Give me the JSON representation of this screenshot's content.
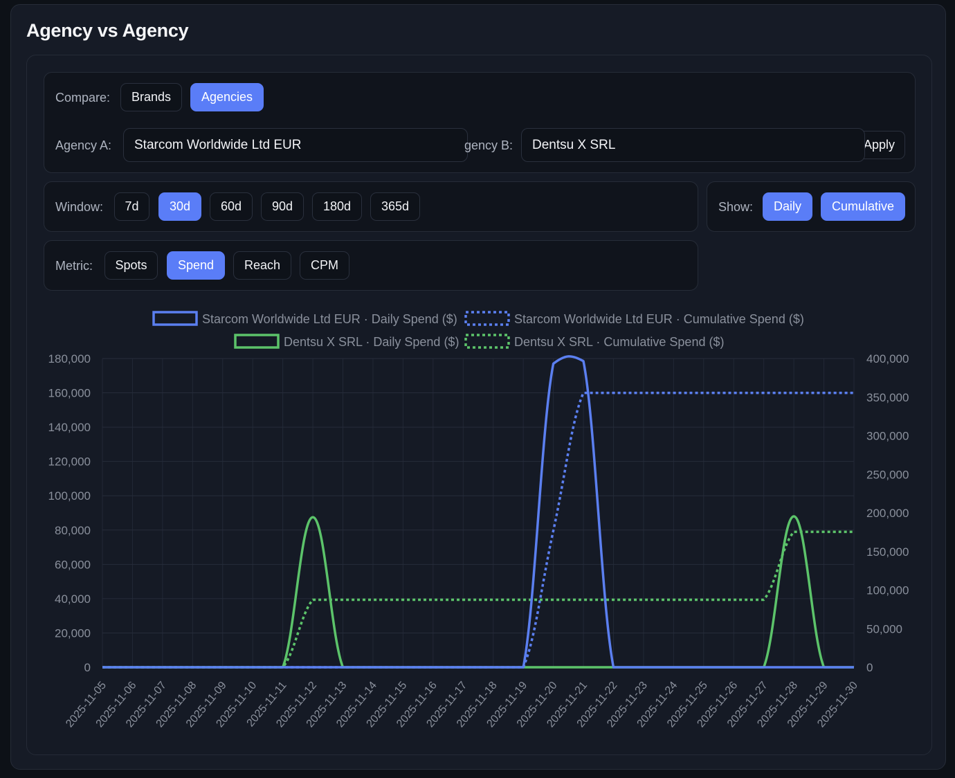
{
  "title": "Agency vs Agency",
  "compare": {
    "label": "Compare:",
    "options": [
      {
        "label": "Brands",
        "active": false
      },
      {
        "label": "Agencies",
        "active": true
      }
    ]
  },
  "agency_a": {
    "label": "Agency A:",
    "value": "Starcom Worldwide Ltd EUR"
  },
  "agency_b": {
    "label": "Agency B:",
    "value": "Dentsu X SRL"
  },
  "apply_label": "Apply",
  "window": {
    "label": "Window:",
    "options": [
      {
        "label": "7d",
        "active": false
      },
      {
        "label": "30d",
        "active": true
      },
      {
        "label": "60d",
        "active": false
      },
      {
        "label": "90d",
        "active": false
      },
      {
        "label": "180d",
        "active": false
      },
      {
        "label": "365d",
        "active": false
      }
    ]
  },
  "show": {
    "label": "Show:",
    "options": [
      {
        "label": "Daily",
        "active": true
      },
      {
        "label": "Cumulative",
        "active": true
      }
    ]
  },
  "metric": {
    "label": "Metric:",
    "options": [
      {
        "label": "Spots",
        "active": false
      },
      {
        "label": "Spend",
        "active": true
      },
      {
        "label": "Reach",
        "active": false
      },
      {
        "label": "CPM",
        "active": false
      }
    ]
  },
  "colors": {
    "agency_a": "#5b7ff0",
    "agency_b": "#5cc36a",
    "accent": "#5a7df7"
  },
  "chart_data": {
    "type": "line",
    "x": [
      "2025-11-05",
      "2025-11-06",
      "2025-11-07",
      "2025-11-08",
      "2025-11-09",
      "2025-11-10",
      "2025-11-11",
      "2025-11-12",
      "2025-11-13",
      "2025-11-14",
      "2025-11-15",
      "2025-11-16",
      "2025-11-17",
      "2025-11-18",
      "2025-11-19",
      "2025-11-20",
      "2025-11-21",
      "2025-11-22",
      "2025-11-23",
      "2025-11-24",
      "2025-11-25",
      "2025-11-26",
      "2025-11-27",
      "2025-11-28",
      "2025-11-29",
      "2025-11-30"
    ],
    "y_left": {
      "min": 0,
      "max": 180000,
      "ticks": [
        "0",
        "20,000",
        "40,000",
        "60,000",
        "80,000",
        "100,000",
        "120,000",
        "140,000",
        "160,000",
        "180,000"
      ]
    },
    "y_right": {
      "min": 0,
      "max": 400000,
      "ticks": [
        "0",
        "50,000",
        "100,000",
        "150,000",
        "200,000",
        "250,000",
        "300,000",
        "350,000",
        "400,000"
      ]
    },
    "legend_position": "top-center",
    "grid": true,
    "series": [
      {
        "name": "Starcom Worldwide Ltd EUR · Daily Spend ($)",
        "axis": "left",
        "style": "solid",
        "color": "#5b7ff0",
        "values": [
          0,
          0,
          0,
          0,
          0,
          0,
          0,
          0,
          0,
          0,
          0,
          0,
          0,
          0,
          0,
          177000,
          178500,
          0,
          0,
          0,
          0,
          0,
          0,
          0,
          0,
          0
        ]
      },
      {
        "name": "Starcom Worldwide Ltd EUR · Cumulative Spend ($)",
        "axis": "right",
        "style": "dotted",
        "color": "#5b7ff0",
        "values": [
          0,
          0,
          0,
          0,
          0,
          0,
          0,
          0,
          0,
          0,
          0,
          0,
          0,
          0,
          0,
          177000,
          355500,
          355500,
          355500,
          355500,
          355500,
          355500,
          355500,
          355500,
          355500,
          355500
        ]
      },
      {
        "name": "Dentsu X SRL · Daily Spend ($)",
        "axis": "left",
        "style": "solid",
        "color": "#5cc36a",
        "values": [
          0,
          0,
          0,
          0,
          0,
          0,
          0,
          87500,
          0,
          0,
          0,
          0,
          0,
          0,
          0,
          0,
          0,
          0,
          0,
          0,
          0,
          0,
          0,
          88000,
          0,
          0
        ]
      },
      {
        "name": "Dentsu X SRL · Cumulative Spend ($)",
        "axis": "right",
        "style": "dotted",
        "color": "#5cc36a",
        "values": [
          0,
          0,
          0,
          0,
          0,
          0,
          0,
          87500,
          87500,
          87500,
          87500,
          87500,
          87500,
          87500,
          87500,
          87500,
          87500,
          87500,
          87500,
          87500,
          87500,
          87500,
          87500,
          175500,
          175500,
          175500
        ]
      }
    ]
  }
}
